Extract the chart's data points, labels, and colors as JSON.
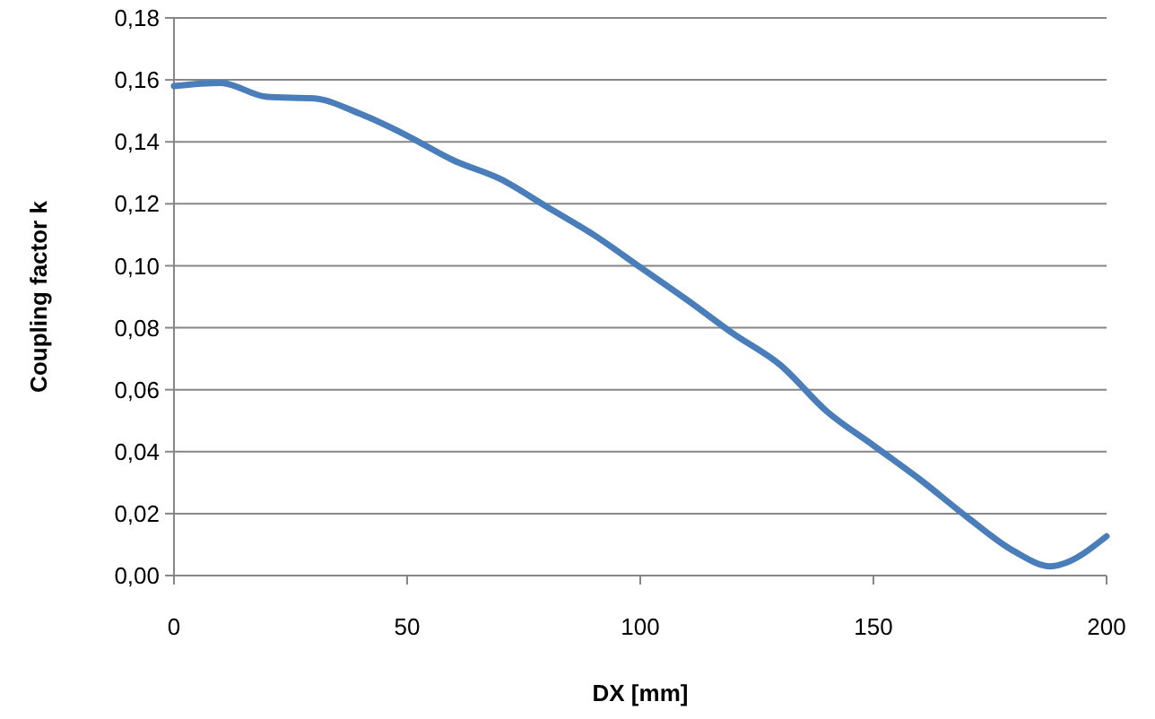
{
  "chart_data": {
    "type": "line",
    "xlabel": "DX [mm]",
    "ylabel": "Coupling factor k",
    "x": [
      0,
      10,
      20,
      30,
      40,
      50,
      60,
      70,
      80,
      90,
      100,
      110,
      120,
      130,
      140,
      150,
      160,
      170,
      180,
      188,
      190,
      200
    ],
    "series": [
      {
        "color": "#4a7ebb",
        "values": [
          0.158,
          0.159,
          0.1545,
          0.154,
          0.149,
          0.142,
          0.134,
          0.128,
          0.119,
          0.11,
          0.0995,
          0.089,
          0.078,
          0.068,
          0.053,
          0.042,
          0.031,
          0.019,
          0.008,
          0.003,
          0.0035,
          0.0127
        ]
      }
    ],
    "xlim": [
      0,
      200
    ],
    "xticks": [
      0,
      50,
      100,
      150,
      200
    ],
    "ylim": [
      0,
      0.18
    ],
    "yticks": [
      {
        "value": 0,
        "label": "0,00"
      },
      {
        "value": 0.02,
        "label": "0,02"
      },
      {
        "value": 0.04,
        "label": "0,04"
      },
      {
        "value": 0.06,
        "label": "0,06"
      },
      {
        "value": 0.08,
        "label": "0,08"
      },
      {
        "value": 0.1,
        "label": "0,10"
      },
      {
        "value": 0.12,
        "label": "0,12"
      },
      {
        "value": 0.14,
        "label": "0,14"
      },
      {
        "value": 0.16,
        "label": "0,16"
      },
      {
        "value": 0.18,
        "label": "0,18"
      }
    ],
    "grid": "y",
    "marker": "none",
    "line_style": "solid"
  }
}
